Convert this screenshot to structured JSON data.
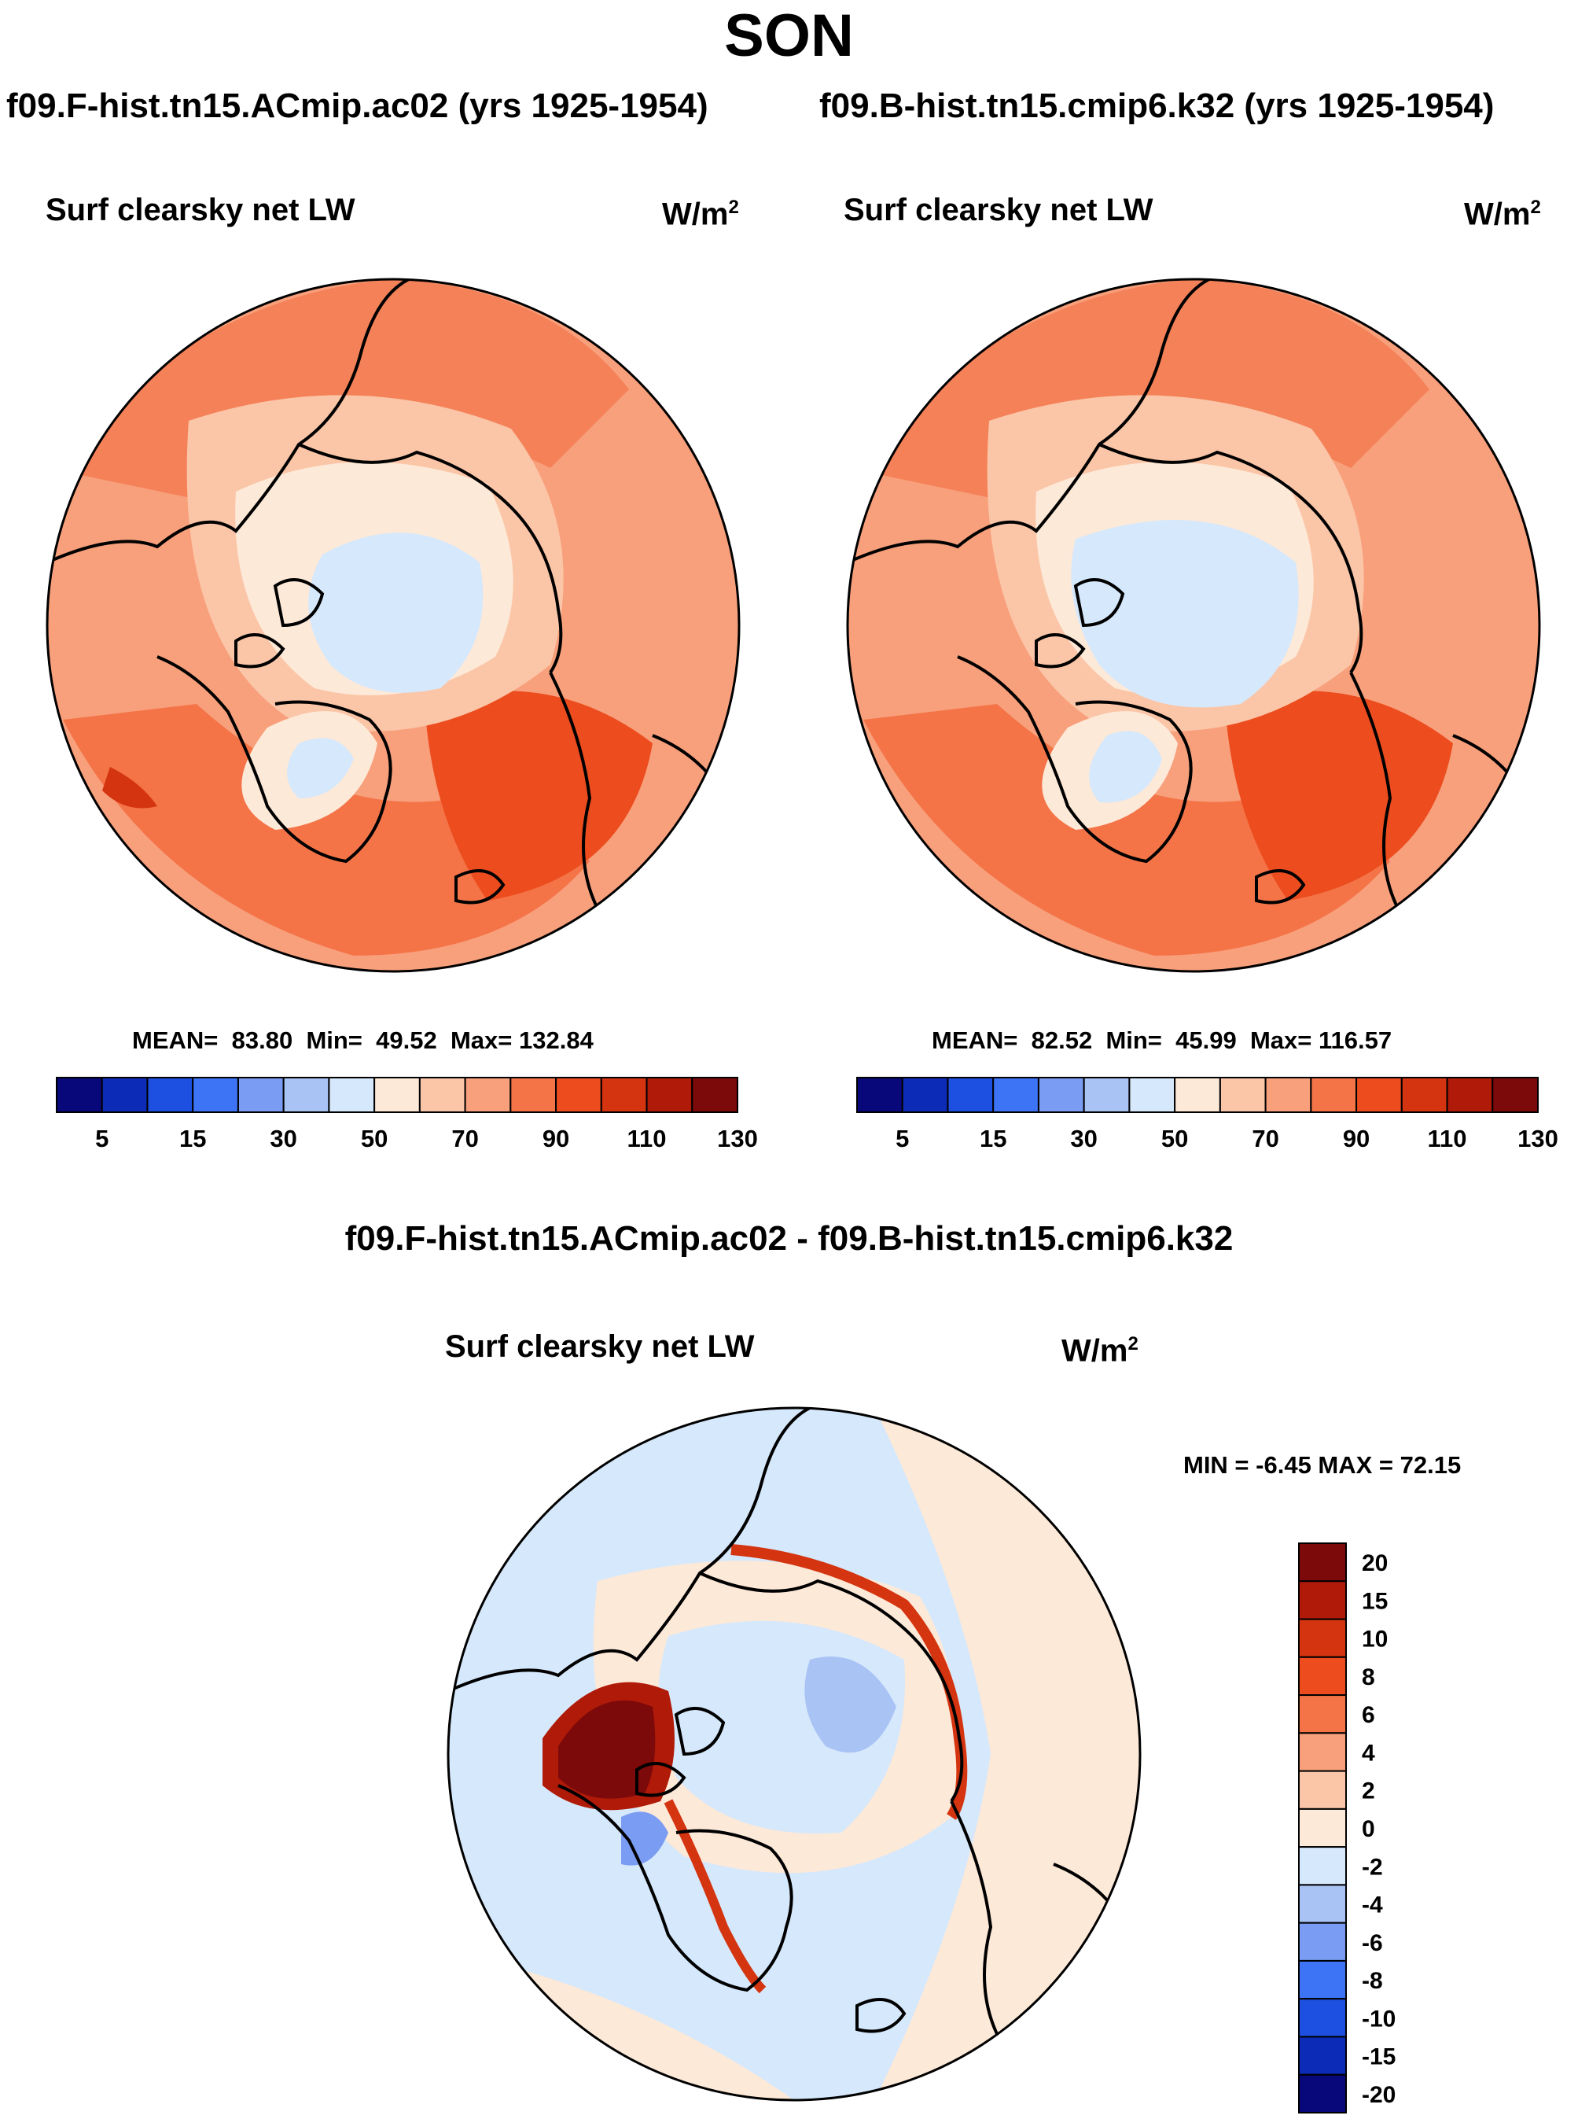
{
  "title": "SON",
  "panels": [
    {
      "run_title": "f09.F-hist.tn15.ACmip.ac02 (yrs 1925-1954)",
      "variable": "Surf clearsky net LW",
      "units_base": "W/m",
      "units_exp": "2",
      "stats": {
        "mean_label": "MEAN=",
        "mean": "83.80",
        "min_label": "Min=",
        "min": "49.52",
        "max_label": "Max=",
        "max": "132.84"
      }
    },
    {
      "run_title": "f09.B-hist.tn15.cmip6.k32 (yrs 1925-1954)",
      "variable": "Surf clearsky net LW",
      "units_base": "W/m",
      "units_exp": "2",
      "stats": {
        "mean_label": "MEAN=",
        "mean": "82.52",
        "min_label": "Min=",
        "min": "45.99",
        "max_label": "Max=",
        "max": "116.57"
      }
    }
  ],
  "diff_panel": {
    "title": "f09.F-hist.tn15.ACmip.ac02 - f09.B-hist.tn15.cmip6.k32",
    "variable": "Surf clearsky net LW",
    "units_base": "W/m",
    "units_exp": "2",
    "minmax_text": "MIN =  -6.45 MAX =  72.15"
  },
  "abs_colorbar": {
    "labels": [
      "5",
      "15",
      "30",
      "50",
      "70",
      "90",
      "110",
      "130"
    ],
    "colors": [
      "#08087a",
      "#0c2cb8",
      "#1d4fe0",
      "#3d74f5",
      "#7a9cf3",
      "#a9c3f5",
      "#d6e8fb",
      "#fde9d8",
      "#fbc6a8",
      "#f8a07c",
      "#f47448",
      "#ec4c1e",
      "#d43410",
      "#b01a08",
      "#7c0a0a"
    ]
  },
  "diff_colorbar": {
    "labels": [
      "20",
      "15",
      "10",
      "8",
      "6",
      "4",
      "2",
      "0",
      "-2",
      "-4",
      "-6",
      "-8",
      "-10",
      "-15",
      "-20"
    ],
    "colors_top_to_bottom": [
      "#7c0a0a",
      "#b01a08",
      "#d43410",
      "#ec4c1e",
      "#f47448",
      "#f8a07c",
      "#fbc6a8",
      "#fde9d8",
      "#d6e8fb",
      "#a9c3f5",
      "#7a9cf3",
      "#3d74f5",
      "#1d4fe0",
      "#0c2cb8",
      "#08087a"
    ]
  },
  "colors": {
    "land_outline": "#000000",
    "arctic_ice": "#d6e8fb"
  }
}
